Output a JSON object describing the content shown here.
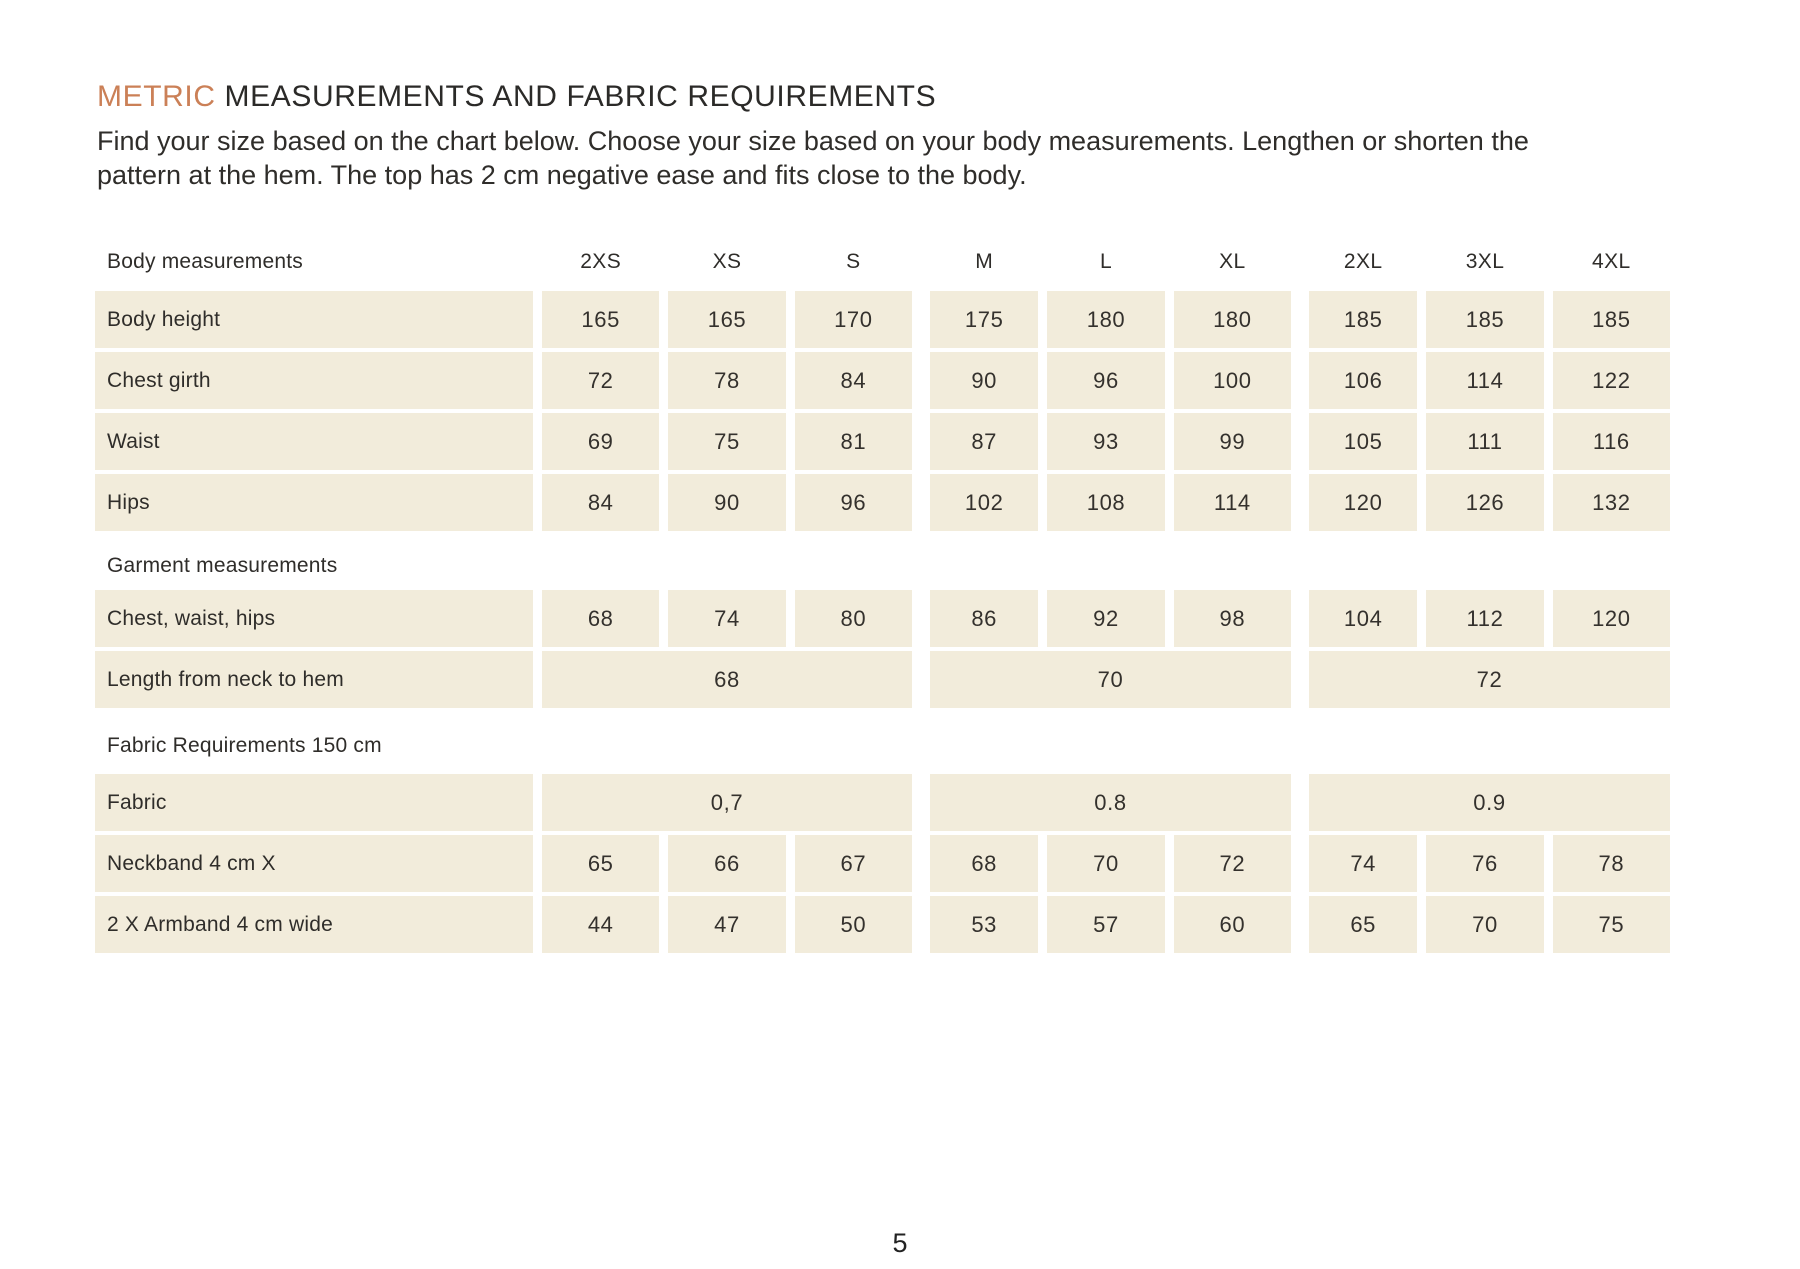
{
  "colors": {
    "accent": "#cb8057",
    "title": "#2b2a28",
    "text": "#2f2d2a",
    "cell_bg": "#f2ecdb"
  },
  "header": {
    "title_accent": "METRIC",
    "title_main": " MEASUREMENTS AND FABRIC REQUIREMENTS",
    "subtitle_line1": "Find your size based on the chart below. Choose your size based on your body measurements. Lengthen or shorten the",
    "subtitle_line2": "pattern at the hem. The top has 2 cm negative ease and fits close to the body."
  },
  "table": {
    "header_label": "Body measurements",
    "sizes": [
      "2XS",
      "XS",
      "S",
      "M",
      "L",
      "XL",
      "2XL",
      "3XL",
      "4XL"
    ],
    "rows": {
      "body_height": {
        "label": "Body height",
        "values": [
          "165",
          "165",
          "170",
          "175",
          "180",
          "180",
          "185",
          "185",
          "185"
        ]
      },
      "chest_girth": {
        "label": "Chest girth",
        "values": [
          "72",
          "78",
          "84",
          "90",
          "96",
          "100",
          "106",
          "114",
          "122"
        ]
      },
      "waist": {
        "label": "Waist",
        "values": [
          "69",
          "75",
          "81",
          "87",
          "93",
          "99",
          "105",
          "111",
          "116"
        ]
      },
      "hips": {
        "label": "Hips",
        "values": [
          "84",
          "90",
          "96",
          "102",
          "108",
          "114",
          "120",
          "126",
          "132"
        ]
      },
      "garment_header": "Garment measurements",
      "chest_waist_hips": {
        "label": "Chest, waist, hips",
        "values": [
          "68",
          "74",
          "80",
          "86",
          "92",
          "98",
          "104",
          "112",
          "120"
        ]
      },
      "length_neck_hem": {
        "label": "Length from neck to hem",
        "values": [
          "68",
          "70",
          "72"
        ]
      },
      "fabric_header": "Fabric Requirements 150 cm",
      "fabric": {
        "label": "Fabric",
        "values": [
          "0,7",
          "0.8",
          "0.9"
        ]
      },
      "neckband": {
        "label": "Neckband 4 cm X",
        "values": [
          "65",
          "66",
          "67",
          "68",
          "70",
          "72",
          "74",
          "76",
          "78"
        ]
      },
      "armband": {
        "label": "2 X Armband 4 cm wide",
        "values": [
          "44",
          "47",
          "50",
          "53",
          "57",
          "60",
          "65",
          "70",
          "75"
        ]
      }
    }
  },
  "footer": {
    "page_number": "5"
  }
}
